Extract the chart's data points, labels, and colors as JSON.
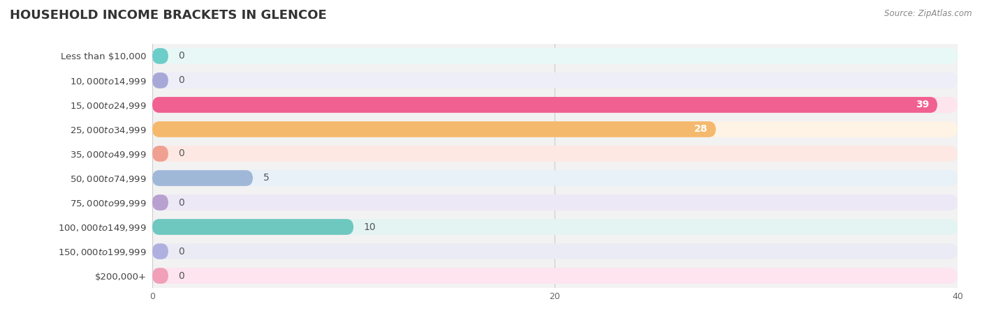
{
  "title": "HOUSEHOLD INCOME BRACKETS IN GLENCOE",
  "source": "Source: ZipAtlas.com",
  "categories": [
    "Less than $10,000",
    "$10,000 to $14,999",
    "$15,000 to $24,999",
    "$25,000 to $34,999",
    "$35,000 to $49,999",
    "$50,000 to $74,999",
    "$75,000 to $99,999",
    "$100,000 to $149,999",
    "$150,000 to $199,999",
    "$200,000+"
  ],
  "values": [
    0,
    0,
    39,
    28,
    0,
    5,
    0,
    10,
    0,
    0
  ],
  "bar_colors": [
    "#6dcdc8",
    "#a8a8d8",
    "#f06090",
    "#f5b96e",
    "#f0a090",
    "#a0b8d8",
    "#b8a0d0",
    "#6ec8c0",
    "#b0b0e0",
    "#f0a0b8"
  ],
  "bar_bg_colors": [
    "#e8f8f7",
    "#eeeef8",
    "#fde4ed",
    "#fef3e4",
    "#fde8e4",
    "#e8f0f8",
    "#ede8f5",
    "#e4f4f2",
    "#ebebf5",
    "#fde4ef"
  ],
  "row_bg_color": "#f0f0f0",
  "white_row_bg": "#fafafa",
  "xlim": [
    0,
    40
  ],
  "xticks": [
    0,
    20,
    40
  ],
  "label_fontsize": 10,
  "title_fontsize": 13,
  "figsize": [
    14.06,
    4.49
  ],
  "dpi": 100
}
